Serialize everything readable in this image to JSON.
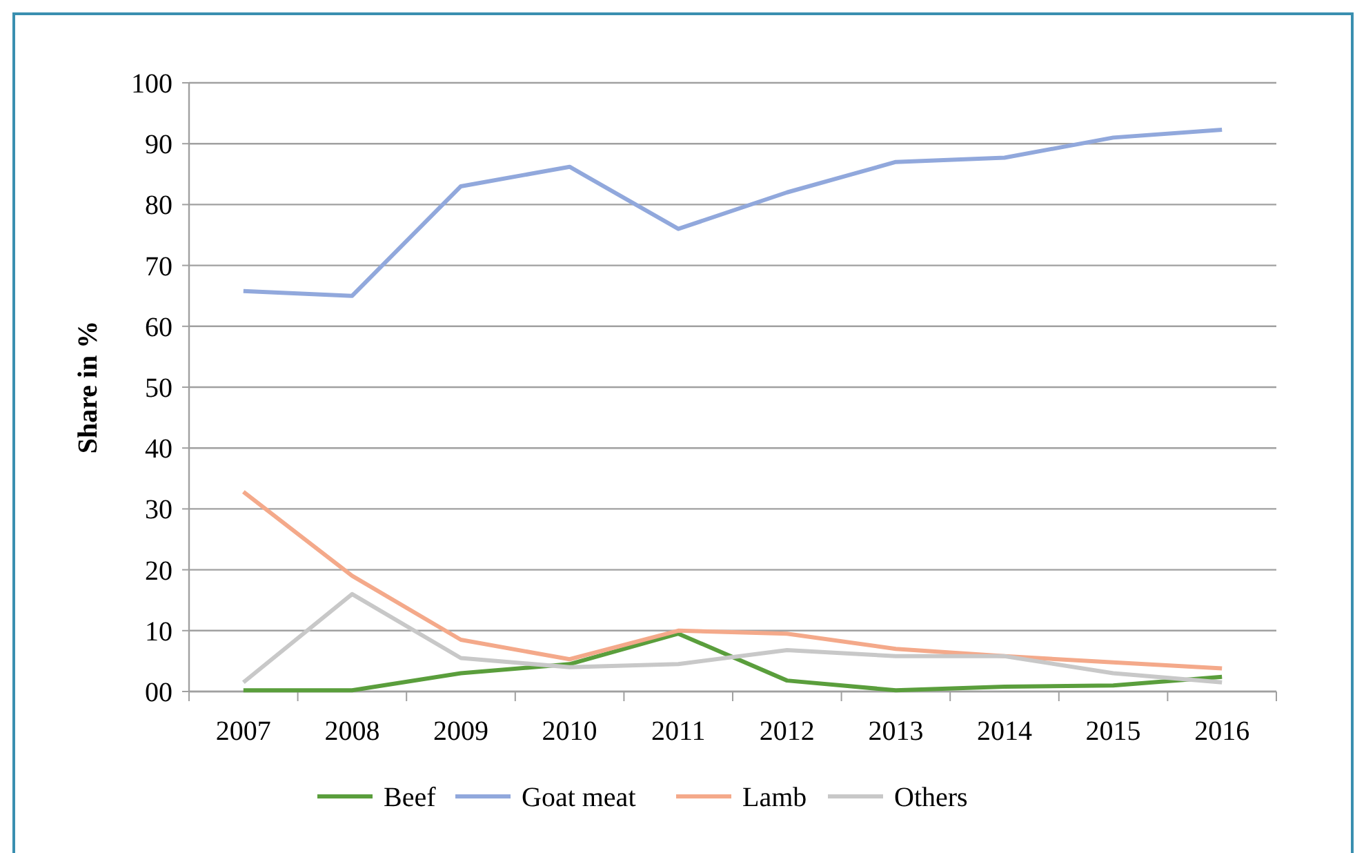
{
  "chart_data": {
    "type": "line",
    "ylabel": "Share in %",
    "categories": [
      "2007",
      "2008",
      "2009",
      "2010",
      "2011",
      "2012",
      "2013",
      "2014",
      "2015",
      "2016"
    ],
    "series": [
      {
        "name": "Beef",
        "color": "#5a9e3c",
        "values": [
          0.2,
          0.2,
          3,
          4.5,
          9.5,
          1.8,
          0.2,
          0.8,
          1,
          2.4
        ]
      },
      {
        "name": "Goat meat",
        "color": "#91a8dc",
        "values": [
          65.8,
          65,
          83,
          86.2,
          76,
          82,
          87,
          87.7,
          91,
          92.3
        ]
      },
      {
        "name": "Lamb",
        "color": "#f4a98a",
        "values": [
          32.8,
          19,
          8.5,
          5.3,
          10,
          9.5,
          7,
          5.8,
          4.8,
          3.8
        ]
      },
      {
        "name": "Others",
        "color": "#c8c8c8",
        "values": [
          1.5,
          16,
          5.5,
          4,
          4.5,
          6.8,
          5.8,
          5.8,
          3,
          1.5
        ]
      }
    ],
    "ylim": [
      0,
      100
    ],
    "yticks": [
      {
        "value": 0,
        "label": "00"
      },
      10,
      20,
      30,
      40,
      50,
      60,
      70,
      80,
      90,
      100
    ],
    "grid": "y",
    "legend": "bottom",
    "marker": "none",
    "line_style": "solid"
  }
}
